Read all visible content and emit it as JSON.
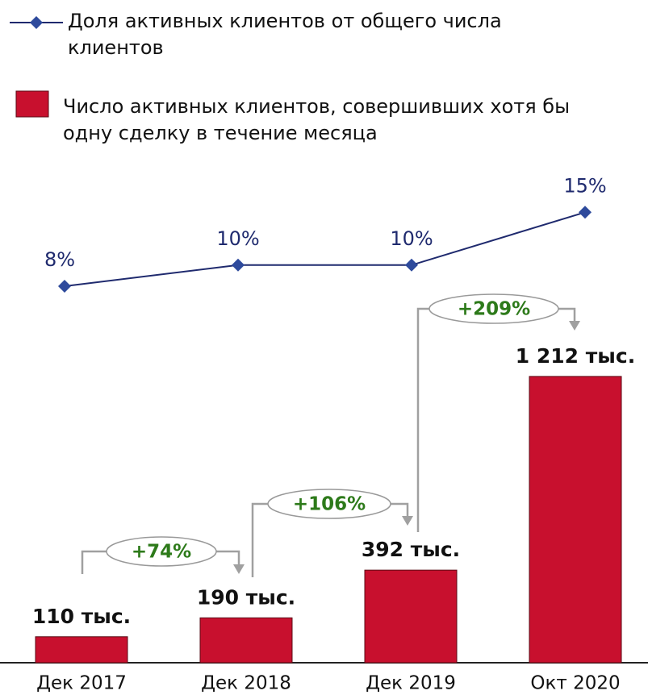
{
  "chart_data": {
    "type": "bar-line",
    "categories": [
      "Дек 2017",
      "Дек 2018",
      "Дек 2019",
      "Окт 2020"
    ],
    "series": [
      {
        "name": "Доля активных клиентов от общего числа клиентов",
        "type": "line",
        "color": "#1f2a6e",
        "values": [
          8,
          10,
          10,
          15
        ],
        "value_labels": [
          "8%",
          "10%",
          "10%",
          "15%"
        ]
      },
      {
        "name": "Число активных клиентов, совершивших хотя бы одну сделку в течение месяца",
        "type": "bar",
        "color": "#c8102e",
        "values": [
          110,
          190,
          392,
          1212
        ],
        "value_labels": [
          "110 тыс.",
          "190 тыс.",
          "392 тыс.",
          "1 212 тыс."
        ]
      }
    ],
    "annotations": [
      "+74%",
      "+106%",
      "+209%"
    ]
  }
}
